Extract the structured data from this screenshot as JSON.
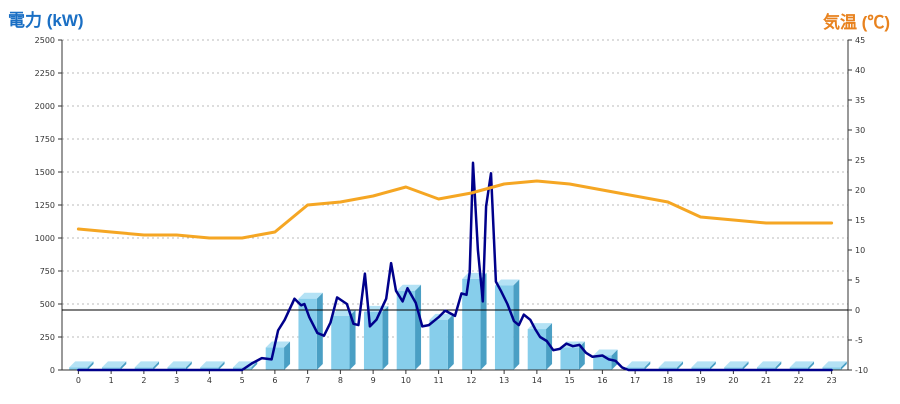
{
  "chart_data": {
    "type": "bar",
    "title": "",
    "left_axis": {
      "label": "電力 (kW)",
      "ylim": [
        0,
        2500
      ],
      "ticks": [
        0,
        250,
        500,
        750,
        1000,
        1250,
        1500,
        1750,
        2000,
        2250,
        2500
      ]
    },
    "right_axis": {
      "label": "気温 (℃)",
      "ylim": [
        -10,
        45
      ],
      "ticks": [
        -10,
        -5,
        0,
        5,
        10,
        15,
        20,
        25,
        30,
        35,
        40,
        45
      ]
    },
    "categories": [
      "0",
      "1",
      "2",
      "3",
      "4",
      "5",
      "6",
      "7",
      "8",
      "9",
      "10",
      "11",
      "12",
      "13",
      "14",
      "15",
      "16",
      "17",
      "18",
      "19",
      "20",
      "21",
      "22",
      "23"
    ],
    "grid": true,
    "reference_line": {
      "axis": "right",
      "value": 0
    },
    "series": [
      {
        "kind": "bar3d",
        "axis": "left",
        "color": "#87ceeb",
        "values": [
          20,
          20,
          20,
          20,
          20,
          20,
          170,
          540,
          410,
          440,
          600,
          380,
          690,
          640,
          310,
          170,
          110,
          20,
          20,
          20,
          20,
          20,
          20,
          20
        ]
      },
      {
        "kind": "line",
        "axis": "left",
        "color": "#00008b",
        "x": [
          0,
          1,
          2,
          3,
          4,
          5,
          5.3,
          5.6,
          5.9,
          6.1,
          6.3,
          6.6,
          6.8,
          6.9,
          7.05,
          7.3,
          7.5,
          7.7,
          7.9,
          8.2,
          8.4,
          8.55,
          8.75,
          8.9,
          9.1,
          9.4,
          9.55,
          9.7,
          9.9,
          10.05,
          10.3,
          10.5,
          10.7,
          11.0,
          11.2,
          11.5,
          11.7,
          11.85,
          11.95,
          12.05,
          12.2,
          12.35,
          12.45,
          12.6,
          12.75,
          12.9,
          13.1,
          13.3,
          13.45,
          13.6,
          13.8,
          13.95,
          14.1,
          14.3,
          14.5,
          14.7,
          14.9,
          15.1,
          15.3,
          15.5,
          15.7,
          16.0,
          16.2,
          16.4,
          16.6,
          16.8,
          17,
          18,
          19,
          20,
          21,
          22,
          23
        ],
        "values": [
          0,
          0,
          0,
          0,
          0,
          0,
          50,
          90,
          80,
          300,
          380,
          540,
          490,
          500,
          400,
          280,
          260,
          360,
          550,
          500,
          350,
          340,
          730,
          330,
          380,
          540,
          810,
          600,
          520,
          620,
          510,
          330,
          340,
          400,
          450,
          410,
          580,
          570,
          740,
          1570,
          910,
          520,
          1240,
          1490,
          670,
          600,
          500,
          370,
          340,
          420,
          380,
          310,
          250,
          220,
          150,
          160,
          200,
          180,
          190,
          130,
          100,
          110,
          80,
          70,
          20,
          0,
          0,
          0,
          0,
          0,
          0,
          0,
          0
        ]
      },
      {
        "kind": "line",
        "axis": "right",
        "color": "#f5a623",
        "x": [
          0,
          1,
          2,
          3,
          4,
          5,
          6,
          7,
          8,
          9,
          10,
          11,
          12,
          13,
          14,
          15,
          16,
          17,
          18,
          19,
          20,
          21,
          22,
          23
        ],
        "values": [
          13.5,
          13,
          12.5,
          12.5,
          12,
          12,
          13,
          17.5,
          18,
          19,
          20.5,
          18.5,
          19.5,
          21,
          21.5,
          21,
          20,
          19,
          18,
          15.5,
          15,
          14.5,
          14.5,
          14.5
        ]
      }
    ]
  }
}
